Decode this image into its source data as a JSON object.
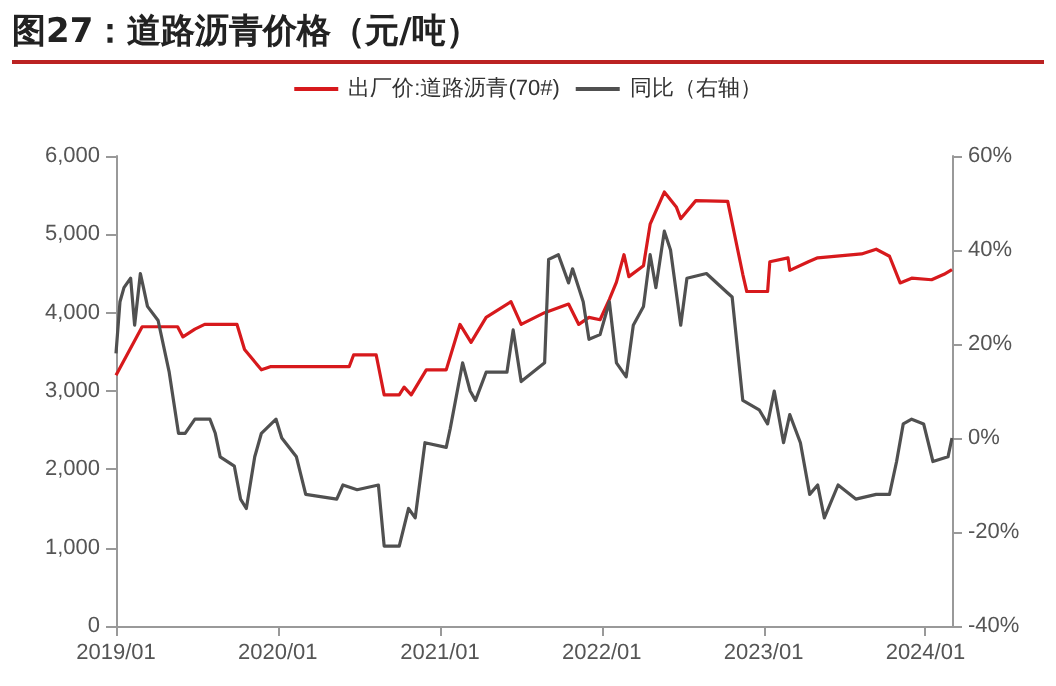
{
  "chart_data": {
    "type": "line",
    "title": "图27：道路沥青价格（元/吨）",
    "xlim": [
      "2019-01-01",
      "2024-03-01"
    ],
    "xticks": [
      {
        "value": "2019-01-01",
        "label": "2019/01"
      },
      {
        "value": "2020-01-01",
        "label": "2020/01"
      },
      {
        "value": "2021-01-01",
        "label": "2021/01"
      },
      {
        "value": "2022-01-01",
        "label": "2022/01"
      },
      {
        "value": "2023-01-01",
        "label": "2023/01"
      },
      {
        "value": "2024-01-01",
        "label": "2024/01"
      }
    ],
    "ylim": [
      0,
      6000
    ],
    "yticks": [
      0,
      {
        "value": 1000,
        "label": "1,000"
      },
      {
        "value": 2000,
        "label": "2,000"
      },
      {
        "value": 3000,
        "label": "3,000"
      },
      {
        "value": 4000,
        "label": "4,000"
      },
      {
        "value": 5000,
        "label": "5,000"
      },
      {
        "value": 6000,
        "label": "6,000"
      }
    ],
    "y2lim": [
      -40,
      60
    ],
    "y2ticks": [
      {
        "value": -40,
        "label": "-40%"
      },
      {
        "value": -20,
        "label": "-20%"
      },
      {
        "value": 0,
        "label": "0%"
      },
      {
        "value": 20,
        "label": "20%"
      },
      {
        "value": 40,
        "label": "40%"
      },
      {
        "value": 60,
        "label": "60%"
      }
    ],
    "grid": false,
    "legend": "top",
    "marker": "none",
    "line_style": "solid",
    "series": [
      {
        "name": "出厂价:道路沥青(70#)",
        "color": "#d7191c",
        "x": [
          "2019-01-01",
          "2019-03-01",
          "2019-05-20",
          "2019-06-01",
          "2019-06-28",
          "2019-07-20",
          "2019-10-01",
          "2019-10-18",
          "2019-11-25",
          "2019-12-15",
          "2020-06-10",
          "2020-06-20",
          "2020-08-10",
          "2020-08-28",
          "2020-10-01",
          "2020-10-12",
          "2020-10-28",
          "2020-12-01",
          "2021-01-15",
          "2021-02-15",
          "2021-03-12",
          "2021-04-15",
          "2021-06-10",
          "2021-07-03",
          "2021-08-25",
          "2021-10-18",
          "2021-11-10",
          "2021-12-03",
          "2021-12-28",
          "2022-01-18",
          "2022-02-03",
          "2022-02-20",
          "2022-03-03",
          "2022-04-05",
          "2022-04-20",
          "2022-05-22",
          "2022-06-18",
          "2022-06-28",
          "2022-08-01",
          "2022-10-12",
          "2022-11-15",
          "2022-11-24",
          "2023-01-10",
          "2023-01-15",
          "2023-02-25",
          "2023-03-01",
          "2023-04-12",
          "2023-05-03",
          "2023-08-10",
          "2023-09-12",
          "2023-10-12",
          "2023-11-05",
          "2023-12-01",
          "2024-01-15",
          "2024-02-12",
          "2024-03-01"
        ],
        "values": [
          3200,
          3820,
          3820,
          3690,
          3790,
          3850,
          3850,
          3530,
          3270,
          3310,
          3310,
          3460,
          3460,
          2950,
          2950,
          3050,
          2950,
          3270,
          3270,
          3850,
          3620,
          3940,
          4140,
          3850,
          4000,
          4110,
          3850,
          3940,
          3910,
          4170,
          4390,
          4740,
          4460,
          4600,
          5130,
          5540,
          5350,
          5200,
          5430,
          5420,
          4490,
          4270,
          4270,
          4650,
          4700,
          4540,
          4650,
          4700,
          4750,
          4810,
          4720,
          4380,
          4440,
          4420,
          4490,
          4550
        ]
      },
      {
        "name": "同比（右轴）",
        "color": "#505050",
        "axis": "y2",
        "x": [
          "2019-01-01",
          "2019-01-10",
          "2019-01-19",
          "2019-02-03",
          "2019-02-12",
          "2019-02-25",
          "2019-03-04",
          "2019-03-13",
          "2019-04-06",
          "2019-05-01",
          "2019-05-22",
          "2019-06-06",
          "2019-06-28",
          "2019-08-01",
          "2019-08-13",
          "2019-08-24",
          "2019-09-25",
          "2019-10-09",
          "2019-10-22",
          "2019-11-10",
          "2019-11-25",
          "2019-12-28",
          "2020-01-10",
          "2020-02-12",
          "2020-03-04",
          "2020-05-13",
          "2020-05-27",
          "2020-06-28",
          "2020-08-15",
          "2020-08-28",
          "2020-10-01",
          "2020-10-22",
          "2020-11-06",
          "2020-11-28",
          "2021-01-15",
          "2021-01-24",
          "2021-02-21",
          "2021-03-10",
          "2021-03-22",
          "2021-04-15",
          "2021-06-01",
          "2021-06-15",
          "2021-07-03",
          "2021-08-25",
          "2021-09-03",
          "2021-09-25",
          "2021-10-18",
          "2021-10-27",
          "2021-11-20",
          "2021-12-03",
          "2021-12-28",
          "2022-01-18",
          "2022-02-03",
          "2022-02-25",
          "2022-03-13",
          "2022-04-05",
          "2022-04-20",
          "2022-05-03",
          "2022-05-22",
          "2022-06-05",
          "2022-06-28",
          "2022-07-12",
          "2022-08-25",
          "2022-10-10",
          "2022-10-22",
          "2022-11-15",
          "2022-12-22",
          "2023-01-10",
          "2023-01-25",
          "2023-02-15",
          "2023-03-01",
          "2023-03-25",
          "2023-04-15",
          "2023-05-03",
          "2023-05-18",
          "2023-06-18",
          "2023-07-28",
          "2023-09-12",
          "2023-10-12",
          "2023-10-28",
          "2023-11-12",
          "2023-12-01",
          "2023-12-28",
          "2024-01-18",
          "2024-02-21",
          "2024-03-01"
        ],
        "values": [
          18,
          29,
          32,
          34,
          24,
          35,
          32,
          28,
          25,
          14,
          1,
          1,
          4,
          4,
          1,
          -4,
          -6,
          -13,
          -15,
          -4,
          1,
          4,
          0,
          -4,
          -12,
          -13,
          -10,
          -11,
          -10,
          -23,
          -23,
          -15,
          -17,
          -1,
          -2,
          2,
          16,
          10,
          8,
          14,
          14,
          23,
          12,
          16,
          38,
          39,
          33,
          36,
          29,
          21,
          22,
          29,
          16,
          13,
          24,
          28,
          39,
          32,
          44,
          40,
          24,
          34,
          35,
          31,
          30,
          8,
          6,
          3,
          10,
          -1,
          5,
          -1,
          -12,
          -10,
          -17,
          -10,
          -13,
          -12,
          -12,
          -5,
          3,
          4,
          3,
          -5,
          -4,
          0
        ]
      }
    ]
  }
}
